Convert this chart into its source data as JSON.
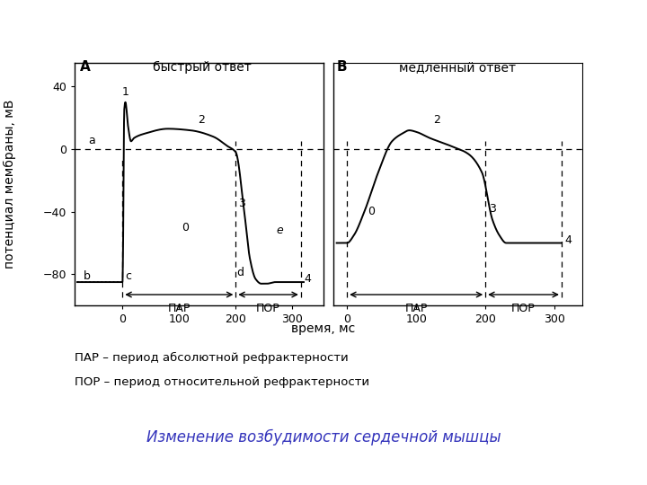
{
  "title": "Изменение возбудимости сердечной мышцы",
  "title_color": "#3333bb",
  "xlabel": "время, мс",
  "ylabel": "потенциал мембраны, мВ",
  "panel_A_label": "A",
  "panel_B_label": "B",
  "fast_response_label": "быстрый ответ",
  "slow_response_label": "медленный ответ",
  "PAR_label": "ПАР",
  "POR_label": "ПОР",
  "legend1": "ПАР – период абсолютной рефрактерности",
  "legend2": "ПОР – период относительной рефрактерности",
  "background_color": "#ffffff",
  "ylim": [
    -100,
    55
  ],
  "xlim_A": [
    -85,
    355
  ],
  "xlim_B": [
    -20,
    340
  ],
  "yticks": [
    -80,
    -40,
    0,
    40
  ],
  "xticks": [
    0,
    100,
    200,
    300
  ],
  "PAR_A_start": 0,
  "PAR_A_end": 200,
  "POR_A_end": 315,
  "PAR_B_start": 0,
  "PAR_B_end": 200,
  "POR_B_end": 310
}
